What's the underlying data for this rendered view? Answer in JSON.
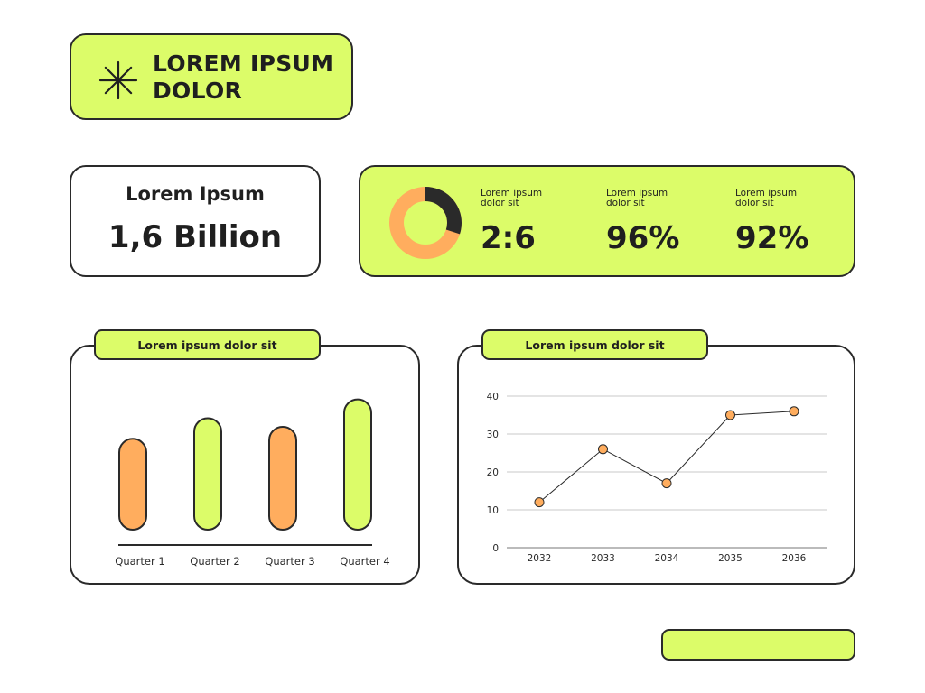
{
  "header": {
    "title": "LOREM IPSUM DOLOR",
    "icon": "asterisk-icon"
  },
  "stat": {
    "label": "Lorem Ipsum",
    "value": "1,6 Billion"
  },
  "metrics": {
    "donut": {
      "dark_fraction": 0.3,
      "colors": {
        "filled": "#2a2a2a",
        "rest": "#ffad5e"
      }
    },
    "items": [
      {
        "label": "Lorem ipsum dolor sit",
        "value": "2:6"
      },
      {
        "label": "Lorem ipsum dolor sit",
        "value": "96%"
      },
      {
        "label": "Lorem ipsum dolor sit",
        "value": "92%"
      }
    ]
  },
  "bar_panel": {
    "title": "Lorem ipsum dolor sit"
  },
  "line_panel": {
    "title": "Lorem ipsum dolor sit"
  },
  "colors": {
    "accent": "#dcfc69",
    "orange": "#ffad5e",
    "outline": "#2a2a2a"
  },
  "chart_data": [
    {
      "type": "bar",
      "categories": [
        "Quarter 1",
        "Quarter 2",
        "Quarter 3",
        "Quarter 4"
      ],
      "values": [
        53,
        65,
        60,
        76
      ],
      "bar_colors": [
        "#ffad5e",
        "#dcfc69",
        "#ffad5e",
        "#dcfc69"
      ],
      "title": "Lorem ipsum dolor sit",
      "ylim": [
        0,
        100
      ]
    },
    {
      "type": "line",
      "x": [
        "2032",
        "2033",
        "2034",
        "2035",
        "2036"
      ],
      "series": [
        {
          "values": [
            12,
            26,
            17,
            35,
            36
          ]
        }
      ],
      "title": "Lorem ipsum dolor sit",
      "ylim": [
        0,
        40
      ],
      "yticks": [
        0,
        10,
        20,
        30,
        40
      ],
      "grid": true
    }
  ]
}
